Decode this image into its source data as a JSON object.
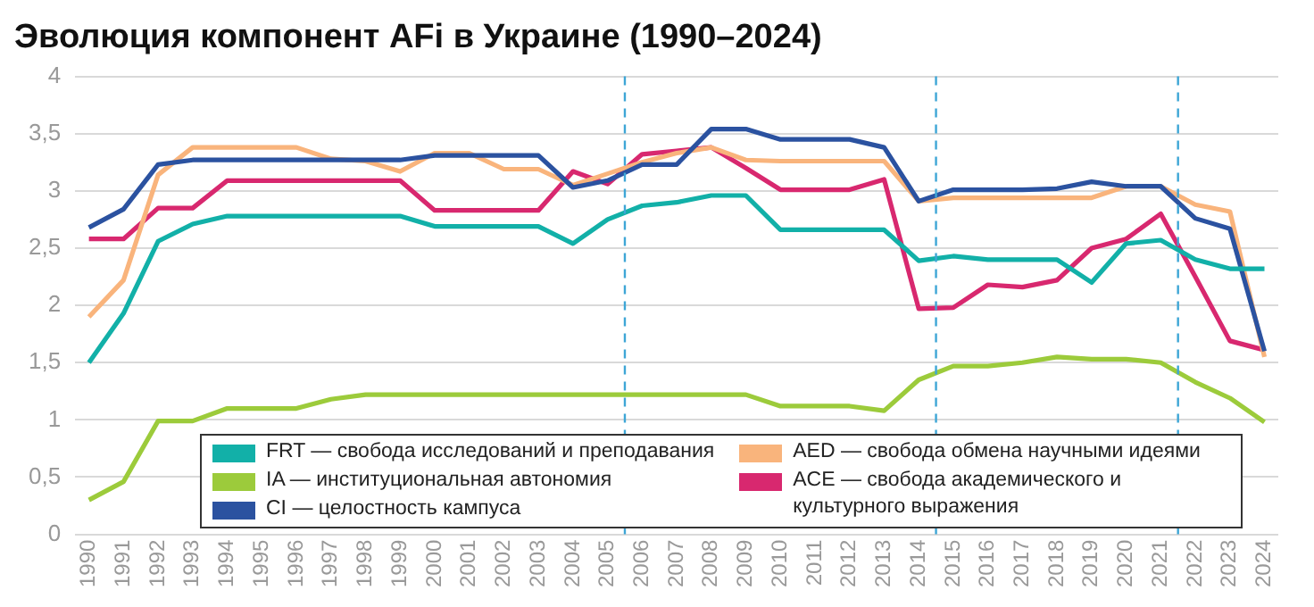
{
  "chart_data": {
    "type": "line",
    "title": "Эволюция компонент AFi в Украине (1990–2024)",
    "x": [
      1990,
      1991,
      1992,
      1993,
      1994,
      1995,
      1996,
      1997,
      1998,
      1999,
      2000,
      2001,
      2002,
      2003,
      2004,
      2005,
      2006,
      2007,
      2008,
      2009,
      2010,
      2011,
      2012,
      2013,
      2014,
      2015,
      2016,
      2017,
      2018,
      2019,
      2020,
      2021,
      2022,
      2023,
      2024
    ],
    "series": [
      {
        "name": "FRT — свобода исследований и преподавания",
        "color": "#12b0a8",
        "values": [
          1.5,
          1.93,
          2.56,
          2.71,
          2.78,
          2.78,
          2.78,
          2.78,
          2.78,
          2.78,
          2.69,
          2.69,
          2.69,
          2.69,
          2.54,
          2.75,
          2.87,
          2.9,
          2.96,
          2.96,
          2.66,
          2.66,
          2.66,
          2.66,
          2.39,
          2.43,
          2.4,
          2.4,
          2.4,
          2.2,
          2.54,
          2.57,
          2.4,
          2.32,
          2.32
        ]
      },
      {
        "name": "IA — институциональная автономия",
        "color": "#9ccb3b",
        "values": [
          0.3,
          0.46,
          0.99,
          0.99,
          1.1,
          1.1,
          1.1,
          1.18,
          1.22,
          1.22,
          1.22,
          1.22,
          1.22,
          1.22,
          1.22,
          1.22,
          1.22,
          1.22,
          1.22,
          1.22,
          1.12,
          1.12,
          1.12,
          1.08,
          1.35,
          1.47,
          1.47,
          1.5,
          1.55,
          1.53,
          1.53,
          1.5,
          1.33,
          1.19,
          0.98
        ]
      },
      {
        "name": "CI — целостность кампуса",
        "color": "#2b52a0",
        "values": [
          2.68,
          2.84,
          3.23,
          3.27,
          3.27,
          3.27,
          3.27,
          3.27,
          3.27,
          3.27,
          3.31,
          3.31,
          3.31,
          3.31,
          3.03,
          3.09,
          3.23,
          3.23,
          3.54,
          3.54,
          3.45,
          3.45,
          3.45,
          3.38,
          2.91,
          3.01,
          3.01,
          3.01,
          3.02,
          3.08,
          3.04,
          3.04,
          2.76,
          2.67,
          1.6
        ]
      },
      {
        "name": "AED — свобода обмена научными идеями",
        "color": "#f9b47c",
        "values": [
          1.9,
          2.22,
          3.14,
          3.38,
          3.38,
          3.38,
          3.38,
          3.28,
          3.26,
          3.17,
          3.33,
          3.33,
          3.19,
          3.19,
          3.05,
          3.15,
          3.25,
          3.33,
          3.38,
          3.27,
          3.26,
          3.26,
          3.26,
          3.26,
          2.91,
          2.94,
          2.94,
          2.94,
          2.94,
          2.94,
          3.04,
          3.04,
          2.88,
          2.82,
          1.55
        ]
      },
      {
        "name": "ACE — свобода академического и культурного выражения",
        "color": "#d8286f",
        "values": [
          2.58,
          2.58,
          2.85,
          2.85,
          3.09,
          3.09,
          3.09,
          3.09,
          3.09,
          3.09,
          2.83,
          2.83,
          2.83,
          2.83,
          3.17,
          3.06,
          3.32,
          3.35,
          3.38,
          3.2,
          3.01,
          3.01,
          3.01,
          3.1,
          1.97,
          1.98,
          2.18,
          2.16,
          2.22,
          2.5,
          2.58,
          2.8,
          2.25,
          1.69,
          1.61
        ]
      }
    ],
    "xlim": [
      1989.6,
      2024.4
    ],
    "xticks": [
      1990,
      1991,
      1992,
      1993,
      1994,
      1995,
      1996,
      1997,
      1998,
      1999,
      2000,
      2001,
      2002,
      2003,
      2004,
      2005,
      2006,
      2007,
      2008,
      2009,
      2010,
      2011,
      2012,
      2013,
      2014,
      2015,
      2016,
      2017,
      2018,
      2019,
      2020,
      2021,
      2022,
      2023,
      2024
    ],
    "ylim": [
      0,
      4
    ],
    "yticks": [
      0,
      {
        "value": 0.5,
        "label": "0,5"
      },
      1,
      {
        "value": 1.5,
        "label": "1,5"
      },
      2,
      {
        "value": 2.5,
        "label": "2,5"
      },
      3,
      {
        "value": 3.5,
        "label": "3,5"
      },
      4
    ],
    "ref_lines": [
      {
        "axis": "x",
        "value": 2005.5,
        "color": "#3ea6d6",
        "line_style": "dashed"
      },
      {
        "axis": "x",
        "value": 2014.5,
        "color": "#3ea6d6",
        "line_style": "dashed"
      },
      {
        "axis": "x",
        "value": 2021.5,
        "color": "#3ea6d6",
        "line_style": "dashed"
      }
    ],
    "grid": "y",
    "legend": "bottom",
    "marker": "none",
    "line_style": "solid"
  }
}
